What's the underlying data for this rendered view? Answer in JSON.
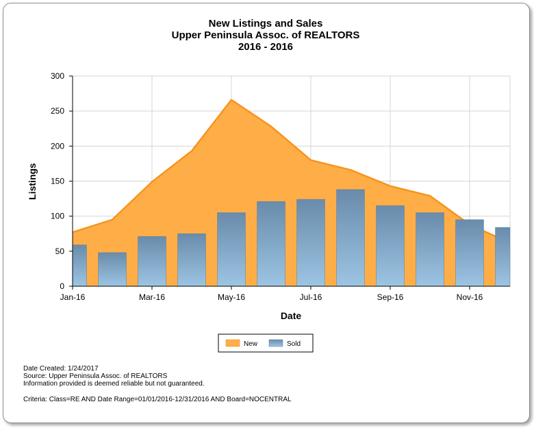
{
  "chart_data": {
    "type": "area+bar",
    "title": [
      "New Listings and Sales",
      "Upper Peninsula Assoc. of REALTORS",
      "2016 - 2016"
    ],
    "xlabel": "Date",
    "ylabel": "Listings",
    "ylim": [
      0,
      300
    ],
    "yticks": [
      0,
      50,
      100,
      150,
      200,
      250,
      300
    ],
    "categories": [
      "Jan-16",
      "Feb-16",
      "Mar-16",
      "Apr-16",
      "May-16",
      "Jun-16",
      "Jul-16",
      "Aug-16",
      "Sep-16",
      "Oct-16",
      "Nov-16",
      "Dec-16"
    ],
    "xtick_labels": [
      "Jan-16",
      "Mar-16",
      "May-16",
      "Jul-16",
      "Sep-16",
      "Nov-16"
    ],
    "grid": true,
    "legend_position": "bottom",
    "series": [
      {
        "name": "New",
        "type": "area",
        "color": "#ffae47",
        "line_color": "#f7931e",
        "values": [
          77,
          95,
          149,
          193,
          266,
          228,
          180,
          166,
          143,
          129,
          88,
          62
        ]
      },
      {
        "name": "Sold",
        "type": "bar",
        "color": "#6b8fb0",
        "values": [
          59,
          48,
          71,
          75,
          105,
          121,
          124,
          138,
          115,
          105,
          95,
          84
        ]
      }
    ]
  },
  "footer": {
    "date_created": "Date Created: 1/24/2017",
    "source": "Source: Upper Peninsula Assoc. of REALTORS",
    "disclaimer": "Information provided is deemed reliable but not guaranteed.",
    "criteria": "Criteria: Class=RE AND Date Range=01/01/2016-12/31/2016 AND Board=NOCENTRAL"
  }
}
